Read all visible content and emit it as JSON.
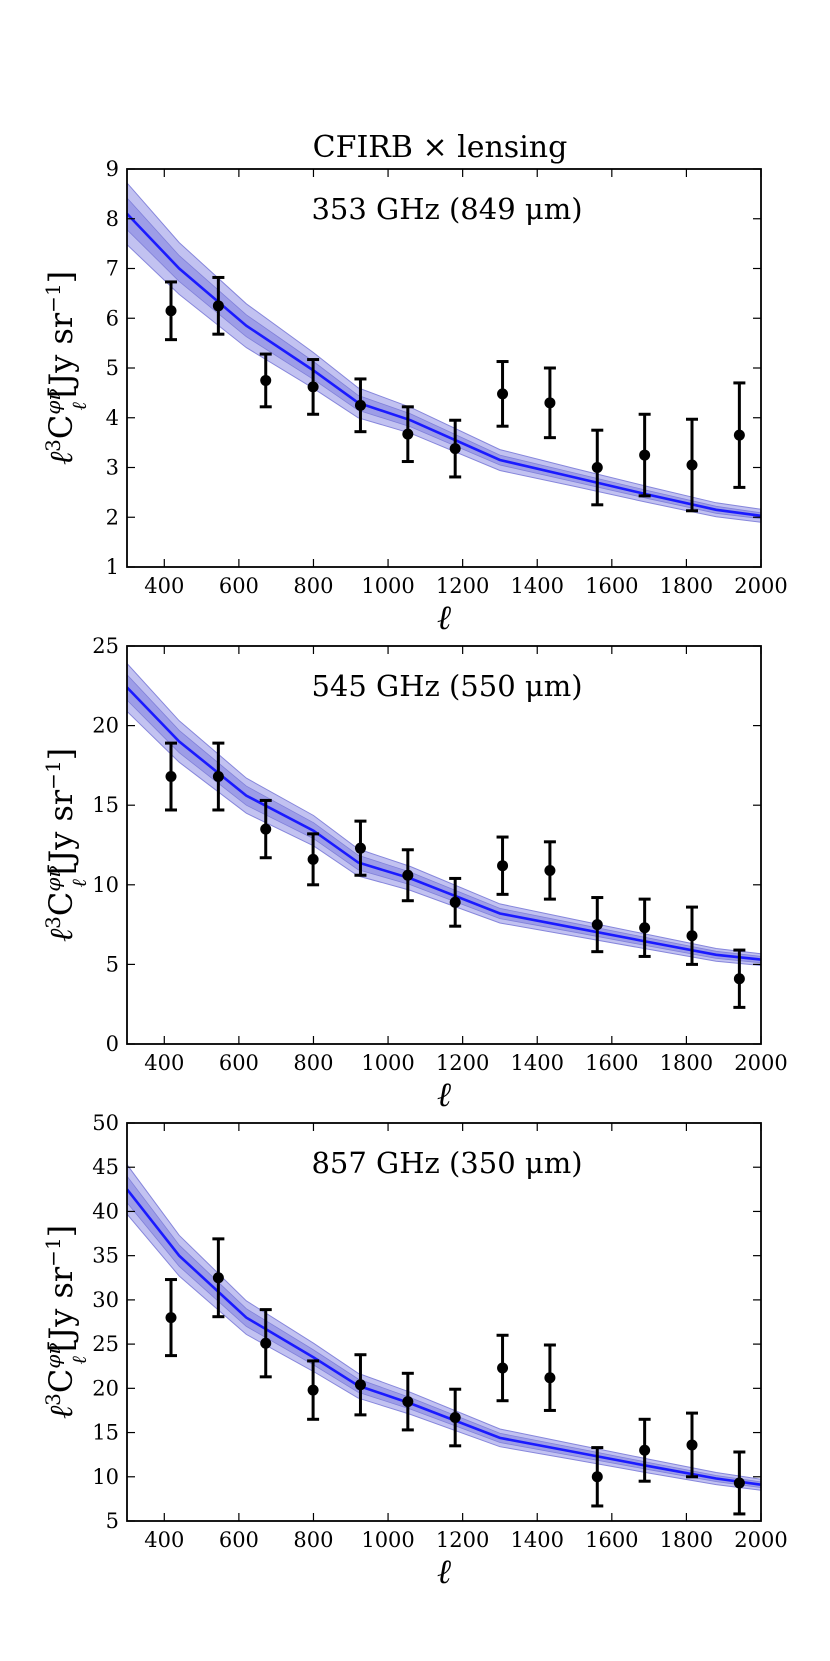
{
  "figure": {
    "title": "CFIRB × lensing",
    "colors": {
      "model_line": "#1a1aff",
      "band_outer": "#bcbcf0",
      "band_inner": "#9a9ae6",
      "band_edge": "#7a7ad8",
      "points": "#000000"
    }
  },
  "chart_data": [
    {
      "type": "scatter",
      "label": "353 GHz (849 μm)",
      "title": "CFIRB × lensing",
      "xlabel": "ℓ",
      "ylabel_parts": {
        "l": "ℓ",
        "pow3": "3",
        "C": "C",
        "sup": "φν",
        "sub": "ℓ",
        "unit": "[Jy sr",
        "unit_pow": "−1",
        "close": "]"
      },
      "xlim": [
        300,
        2000
      ],
      "ylim": [
        1,
        9
      ],
      "xticks": [
        400,
        600,
        800,
        1000,
        1200,
        1400,
        1600,
        1800,
        2000
      ],
      "yticks": [
        1,
        2,
        3,
        4,
        5,
        6,
        7,
        8,
        9
      ],
      "points": {
        "x": [
          418,
          545,
          672,
          799,
          926,
          1053,
          1180,
          1307,
          1434,
          1561,
          1688,
          1815,
          1942
        ],
        "y": [
          6.15,
          6.25,
          4.75,
          4.62,
          4.25,
          3.67,
          3.38,
          4.48,
          4.3,
          3.0,
          3.25,
          3.05,
          3.65
        ],
        "yerr": [
          0.58,
          0.57,
          0.53,
          0.55,
          0.53,
          0.55,
          0.57,
          0.65,
          0.7,
          0.75,
          0.82,
          0.92,
          1.05
        ]
      },
      "model": {
        "x": [
          300,
          440,
          620,
          800,
          920,
          1060,
          1300,
          1500,
          1700,
          1880,
          2000
        ],
        "y": [
          8.1,
          7.0,
          5.85,
          4.95,
          4.3,
          3.95,
          3.15,
          2.8,
          2.45,
          2.15,
          2.03
        ],
        "band_inner": [
          0.32,
          0.26,
          0.22,
          0.18,
          0.15,
          0.13,
          0.1,
          0.09,
          0.08,
          0.07,
          0.06
        ],
        "band_outer": [
          0.62,
          0.52,
          0.44,
          0.36,
          0.3,
          0.26,
          0.21,
          0.18,
          0.16,
          0.14,
          0.13
        ]
      }
    },
    {
      "type": "scatter",
      "label": "545 GHz (550 μm)",
      "xlabel": "ℓ",
      "ylabel_parts": {
        "l": "ℓ",
        "pow3": "3",
        "C": "C",
        "sup": "φν",
        "sub": "ℓ",
        "unit": "[Jy sr",
        "unit_pow": "−1",
        "close": "]"
      },
      "xlim": [
        300,
        2000
      ],
      "ylim": [
        0,
        25
      ],
      "xticks": [
        400,
        600,
        800,
        1000,
        1200,
        1400,
        1600,
        1800,
        2000
      ],
      "yticks": [
        0,
        5,
        10,
        15,
        20,
        25
      ],
      "points": {
        "x": [
          418,
          545,
          672,
          799,
          926,
          1053,
          1180,
          1307,
          1434,
          1561,
          1688,
          1815,
          1942
        ],
        "y": [
          16.8,
          16.8,
          13.5,
          11.6,
          12.3,
          10.6,
          8.9,
          11.2,
          10.9,
          7.5,
          7.3,
          6.8,
          4.1
        ],
        "yerr": [
          2.1,
          2.1,
          1.8,
          1.6,
          1.7,
          1.6,
          1.5,
          1.8,
          1.8,
          1.7,
          1.8,
          1.8,
          1.8
        ]
      },
      "model": {
        "x": [
          300,
          440,
          620,
          800,
          920,
          1060,
          1300,
          1500,
          1700,
          1880,
          2000
        ],
        "y": [
          22.4,
          19.0,
          15.6,
          13.4,
          11.4,
          10.4,
          8.2,
          7.3,
          6.4,
          5.6,
          5.3
        ],
        "band_inner": [
          0.8,
          0.7,
          0.6,
          0.5,
          0.45,
          0.4,
          0.32,
          0.28,
          0.25,
          0.22,
          0.2
        ],
        "band_outer": [
          1.5,
          1.3,
          1.1,
          0.95,
          0.85,
          0.75,
          0.6,
          0.52,
          0.46,
          0.4,
          0.37
        ]
      }
    },
    {
      "type": "scatter",
      "label": "857 GHz (350 μm)",
      "xlabel": "ℓ",
      "ylabel_parts": {
        "l": "ℓ",
        "pow3": "3",
        "C": "C",
        "sup": "φν",
        "sub": "ℓ",
        "unit": "[Jy sr",
        "unit_pow": "−1",
        "close": "]"
      },
      "xlim": [
        300,
        2000
      ],
      "ylim": [
        5,
        50
      ],
      "xticks": [
        400,
        600,
        800,
        1000,
        1200,
        1400,
        1600,
        1800,
        2000
      ],
      "yticks": [
        5,
        10,
        15,
        20,
        25,
        30,
        35,
        40,
        45,
        50
      ],
      "points": {
        "x": [
          418,
          545,
          672,
          799,
          926,
          1053,
          1180,
          1307,
          1434,
          1561,
          1688,
          1815,
          1942
        ],
        "y": [
          28.0,
          32.5,
          25.1,
          19.8,
          20.4,
          18.5,
          16.7,
          22.3,
          21.2,
          10.0,
          13.0,
          13.6,
          9.3
        ],
        "yerr": [
          4.3,
          4.4,
          3.8,
          3.3,
          3.4,
          3.2,
          3.2,
          3.7,
          3.7,
          3.3,
          3.5,
          3.6,
          3.5
        ]
      },
      "model": {
        "x": [
          300,
          440,
          620,
          800,
          920,
          1060,
          1300,
          1500,
          1700,
          1880,
          2000
        ],
        "y": [
          42.5,
          35.0,
          28.0,
          23.5,
          20.3,
          18.3,
          14.4,
          12.8,
          11.2,
          9.8,
          9.1
        ],
        "band_inner": [
          1.5,
          1.2,
          1.0,
          0.85,
          0.75,
          0.65,
          0.52,
          0.46,
          0.4,
          0.35,
          0.32
        ],
        "band_outer": [
          2.8,
          2.3,
          1.9,
          1.6,
          1.4,
          1.25,
          1.0,
          0.88,
          0.78,
          0.68,
          0.62
        ]
      }
    }
  ]
}
